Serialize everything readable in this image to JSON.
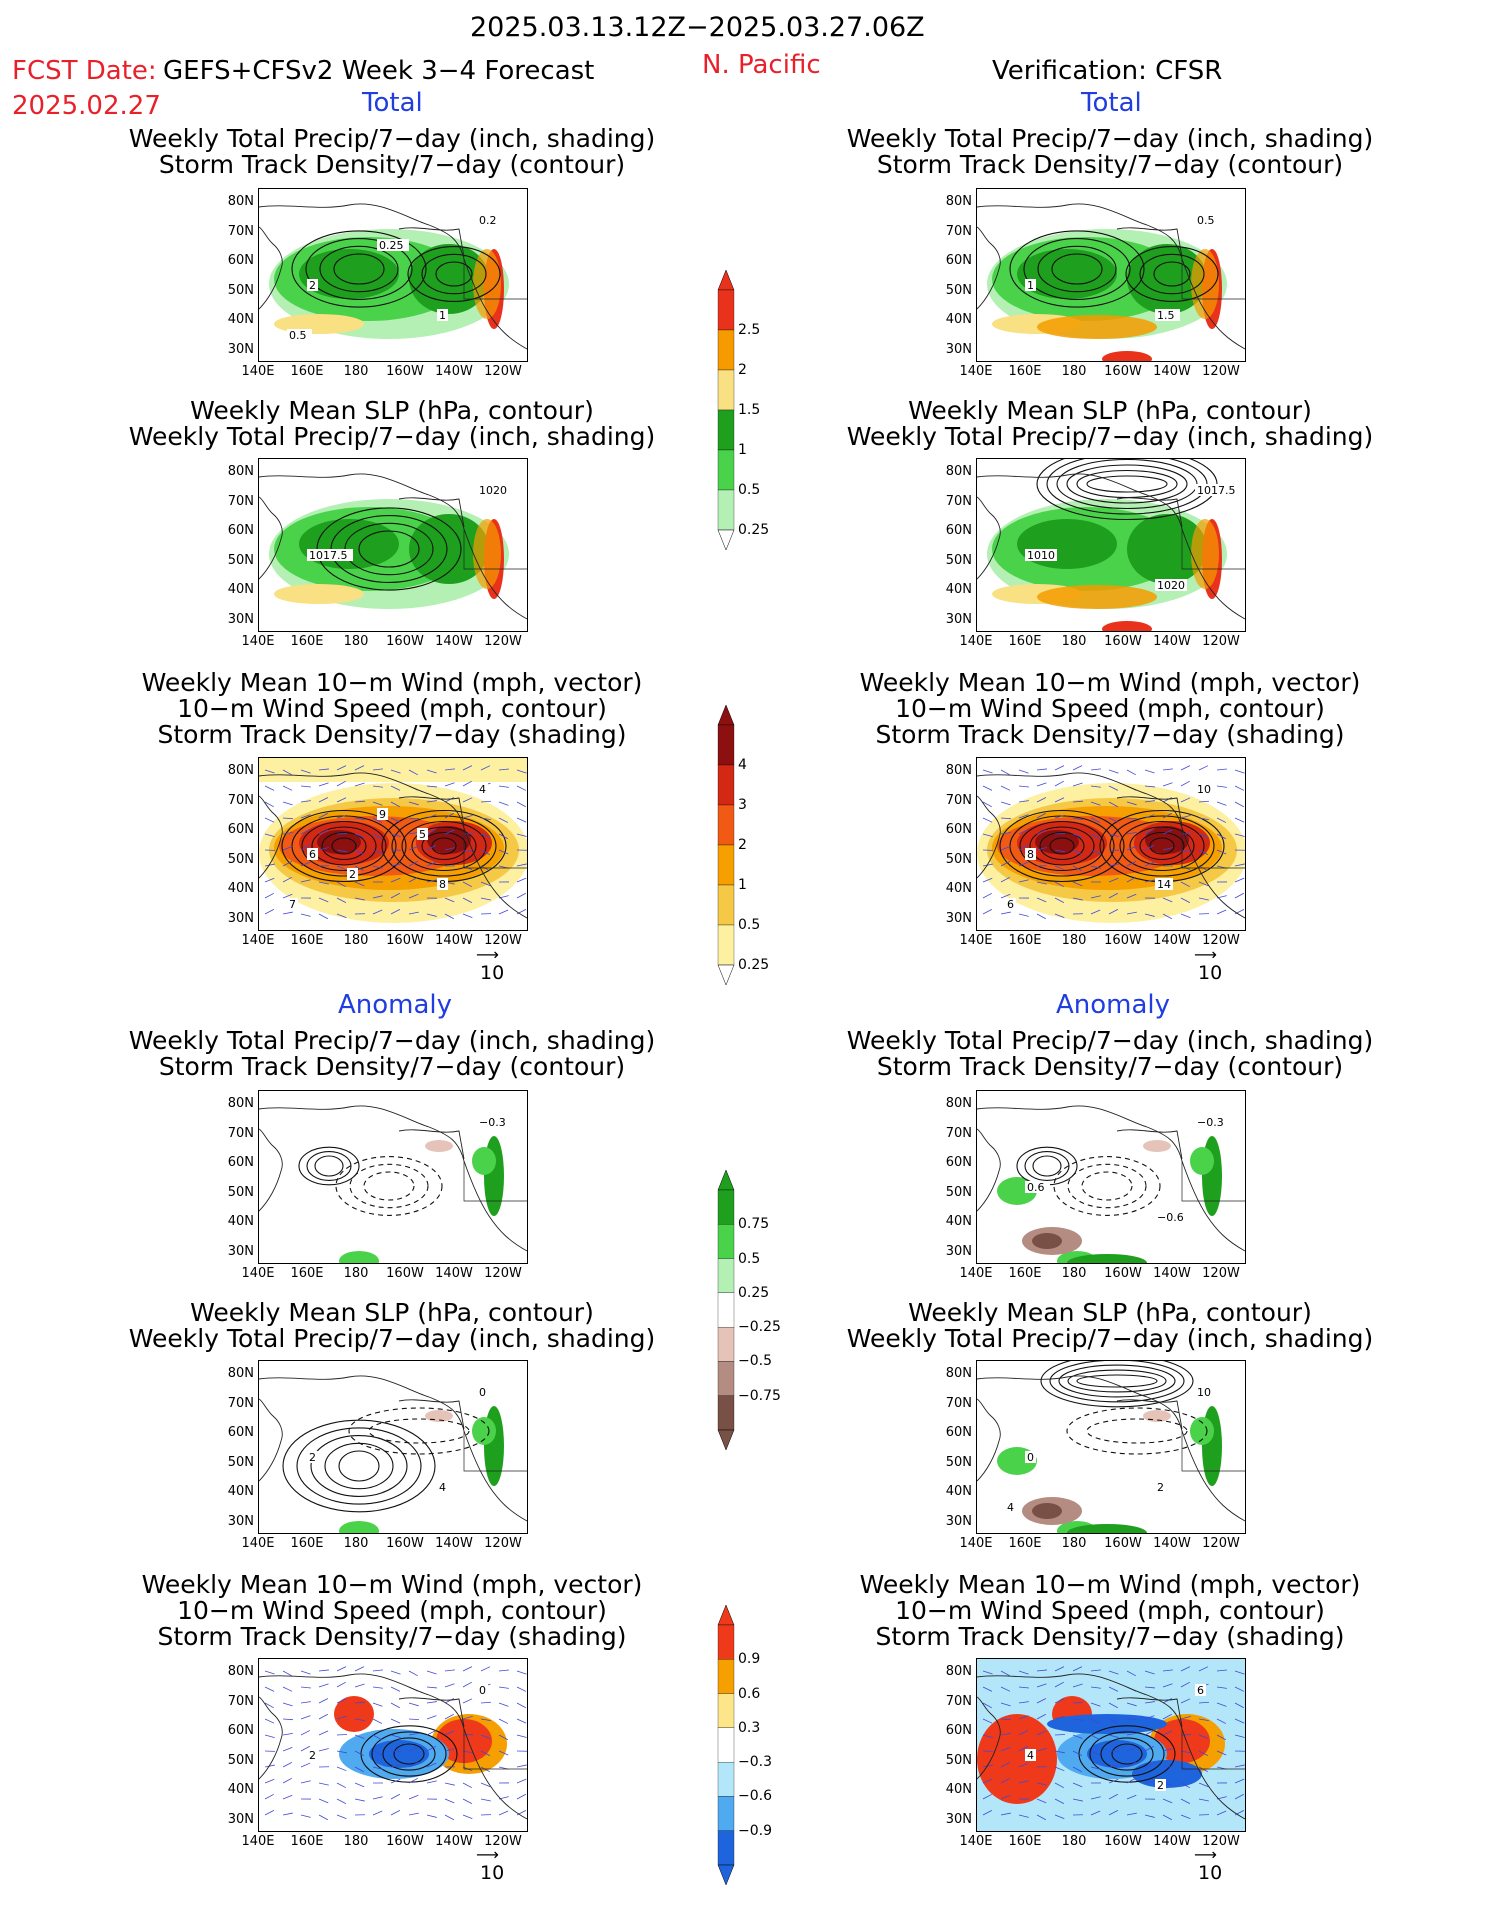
{
  "header": {
    "date_range": "2025.03.13.12Z−2025.03.27.06Z",
    "fcst_label": "FCST Date:",
    "model_label": "GEFS+CFSv2 Week 3−4 Forecast",
    "fcst_date": "2025.02.27",
    "region": "N. Pacific",
    "verification": "Verification: CFSR"
  },
  "sections": {
    "total": "Total",
    "anomaly": "Anomaly"
  },
  "titles": {
    "precip_storm": [
      "Weekly Total Precip/7−day (inch, shading)",
      "Storm Track Density/7−day (contour)"
    ],
    "slp_precip": [
      "Weekly Mean SLP (hPa, contour)",
      "Weekly Total Precip/7−day (inch, shading)"
    ],
    "wind_storm": [
      "Weekly Mean 10−m Wind (mph, vector)",
      "10−m Wind Speed (mph, contour)",
      "Storm Track Density/7−day (shading)"
    ]
  },
  "axes": {
    "lat_ticks": [
      "80N",
      "70N",
      "60N",
      "50N",
      "40N",
      "30N"
    ],
    "lon_ticks": [
      "140E",
      "160E",
      "180",
      "160W",
      "140W",
      "120W"
    ]
  },
  "vector_ref": "10",
  "colorbars": {
    "precip_total": {
      "labels": [
        "2.5",
        "2",
        "1.5",
        "1",
        "0.5",
        "0.25"
      ],
      "colors": [
        "#e8321c",
        "#f59b00",
        "#f9e082",
        "#1ea01e",
        "#4bd24b",
        "#b4f0b4"
      ]
    },
    "storm_total": {
      "labels": [
        "4",
        "3",
        "2",
        "1",
        "0.5",
        "0.25"
      ],
      "colors": [
        "#8c1010",
        "#d22814",
        "#f05a14",
        "#f5a000",
        "#f5c846",
        "#fdf0a0"
      ]
    },
    "precip_anom": {
      "labels": [
        "0.75",
        "0.5",
        "0.25",
        "−0.25",
        "−0.5",
        "−0.75"
      ],
      "colors": [
        "#1ea01e",
        "#4bd24b",
        "#b4f0b4",
        "#ffffff",
        "#e6c3b9",
        "#b48c82",
        "#785046"
      ]
    },
    "storm_anom": {
      "labels": [
        "0.9",
        "0.6",
        "0.3",
        "−0.3",
        "−0.6",
        "−0.9"
      ],
      "colors": [
        "#ee3a1a",
        "#f5a000",
        "#fde68a",
        "#ffffff",
        "#b4e6fa",
        "#50aaf0",
        "#1e64dc"
      ]
    }
  },
  "chart_data": [
    {
      "type": "heatmap",
      "panel": "forecast-total-precip",
      "title": "Weekly Total Precip/7−day (inch, shading) / Storm Track Density/7−day (contour)",
      "contour_labels": [
        "0.2",
        "2",
        "1",
        "0.5",
        "0.25"
      ]
    },
    {
      "type": "heatmap",
      "panel": "forecast-total-slp",
      "title": "Weekly Mean SLP (hPa, contour) / Weekly Total Precip/7−day (inch, shading)",
      "contour_labels": [
        "1020",
        "1017.5"
      ]
    },
    {
      "type": "heatmap",
      "panel": "forecast-total-wind",
      "title": "Weekly Mean 10−m Wind (mph, vector) / 10−m Wind Speed (mph, contour) / Storm Track Density/7−day (shading)",
      "contour_labels": [
        "4",
        "6",
        "8",
        "7",
        "9",
        "2",
        "5"
      ]
    },
    {
      "type": "heatmap",
      "panel": "verif-total-precip",
      "title": "Weekly Total Precip/7−day (inch, shading) / Storm Track Density/7−day (contour)",
      "contour_labels": [
        "0.5",
        "1",
        "1.5"
      ]
    },
    {
      "type": "heatmap",
      "panel": "verif-total-slp",
      "title": "Weekly Mean SLP (hPa, contour) / Weekly Total Precip/7−day (inch, shading)",
      "contour_labels": [
        "1017.5",
        "1010",
        "1020"
      ]
    },
    {
      "type": "heatmap",
      "panel": "verif-total-wind",
      "title": "Weekly Mean 10−m Wind (mph, vector) / 10−m Wind Speed (mph, contour) / Storm Track Density/7−day (shading)",
      "contour_labels": [
        "10",
        "8",
        "14",
        "6"
      ]
    },
    {
      "type": "heatmap",
      "panel": "forecast-anom-precip",
      "title": "Weekly Total Precip/7−day (inch, shading) / Storm Track Density/7−day (contour)",
      "contour_labels": [
        "−0.3"
      ]
    },
    {
      "type": "heatmap",
      "panel": "forecast-anom-slp",
      "title": "Weekly Mean SLP (hPa, contour) / Weekly Total Precip/7−day (inch, shading)",
      "contour_labels": [
        "0",
        "2",
        "4"
      ]
    },
    {
      "type": "heatmap",
      "panel": "forecast-anom-wind",
      "title": "Weekly Mean 10−m Wind (mph, vector) / 10−m Wind Speed (mph, contour) / Storm Track Density/7−day (shading)",
      "contour_labels": [
        "0",
        "2"
      ]
    },
    {
      "type": "heatmap",
      "panel": "verif-anom-precip",
      "title": "Weekly Total Precip/7−day (inch, shading) / Storm Track Density/7−day (contour)",
      "contour_labels": [
        "−0.3",
        "0.6",
        "−0.6"
      ]
    },
    {
      "type": "heatmap",
      "panel": "verif-anom-slp",
      "title": "Weekly Mean SLP (hPa, contour) / Weekly Total Precip/7−day (inch, shading)",
      "contour_labels": [
        "10",
        "0",
        "2",
        "4"
      ]
    },
    {
      "type": "heatmap",
      "panel": "verif-anom-wind",
      "title": "Weekly Mean 10−m Wind (mph, vector) / 10−m Wind Speed (mph, contour) / Storm Track Density/7−day (shading)",
      "contour_labels": [
        "6",
        "4",
        "2"
      ]
    }
  ]
}
